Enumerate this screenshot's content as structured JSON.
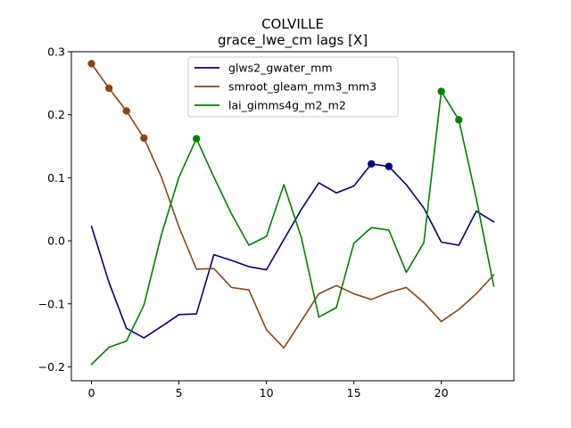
{
  "chart_data": {
    "type": "line",
    "title": "COLVILLE",
    "subtitle": "grace_lwe_cm lags [X]",
    "xlabel": "",
    "ylabel": "",
    "xlim": [
      -1.15,
      24.15
    ],
    "ylim": [
      -0.222,
      0.3
    ],
    "xticks": [
      0,
      5,
      10,
      15,
      20
    ],
    "yticks": [
      -0.2,
      -0.1,
      0.0,
      0.1,
      0.2,
      0.3
    ],
    "ytick_labels": [
      "−0.2",
      "−0.1",
      "0.0",
      "0.1",
      "0.2",
      "0.3"
    ],
    "legend_position": "upper-center",
    "grid": false,
    "x": [
      0,
      1,
      2,
      3,
      4,
      5,
      6,
      7,
      8,
      9,
      10,
      11,
      12,
      13,
      14,
      15,
      16,
      17,
      18,
      19,
      20,
      21,
      22,
      23
    ],
    "series": [
      {
        "name": "glws2_gwater_mm",
        "color": "#000080",
        "values": [
          0.023,
          -0.066,
          -0.139,
          -0.154,
          -0.136,
          -0.117,
          -0.116,
          -0.022,
          -0.031,
          -0.041,
          -0.046,
          0.002,
          0.05,
          0.092,
          0.076,
          0.087,
          0.122,
          0.118,
          0.089,
          0.052,
          -0.002,
          -0.007,
          0.047,
          0.03
        ],
        "markers": [
          16,
          17
        ]
      },
      {
        "name": "smroot_gleam_mm3_mm3",
        "color": "#8B4513",
        "values": [
          0.281,
          0.242,
          0.206,
          0.163,
          0.101,
          0.022,
          -0.045,
          -0.044,
          -0.074,
          -0.078,
          -0.141,
          -0.17,
          -0.127,
          -0.084,
          -0.071,
          -0.084,
          -0.093,
          -0.082,
          -0.074,
          -0.098,
          -0.128,
          -0.109,
          -0.084,
          -0.054
        ],
        "markers": [
          0,
          1,
          2,
          3
        ]
      },
      {
        "name": "lai_gimms4g_m2_m2",
        "color": "#008000",
        "values": [
          -0.196,
          -0.169,
          -0.159,
          -0.102,
          0.01,
          0.101,
          0.162,
          0.101,
          0.043,
          -0.007,
          0.007,
          0.089,
          0.005,
          -0.121,
          -0.106,
          -0.004,
          0.021,
          0.017,
          -0.05,
          -0.003,
          0.237,
          0.192,
          0.067,
          -0.072
        ],
        "markers": [
          6,
          20,
          21
        ]
      }
    ]
  }
}
